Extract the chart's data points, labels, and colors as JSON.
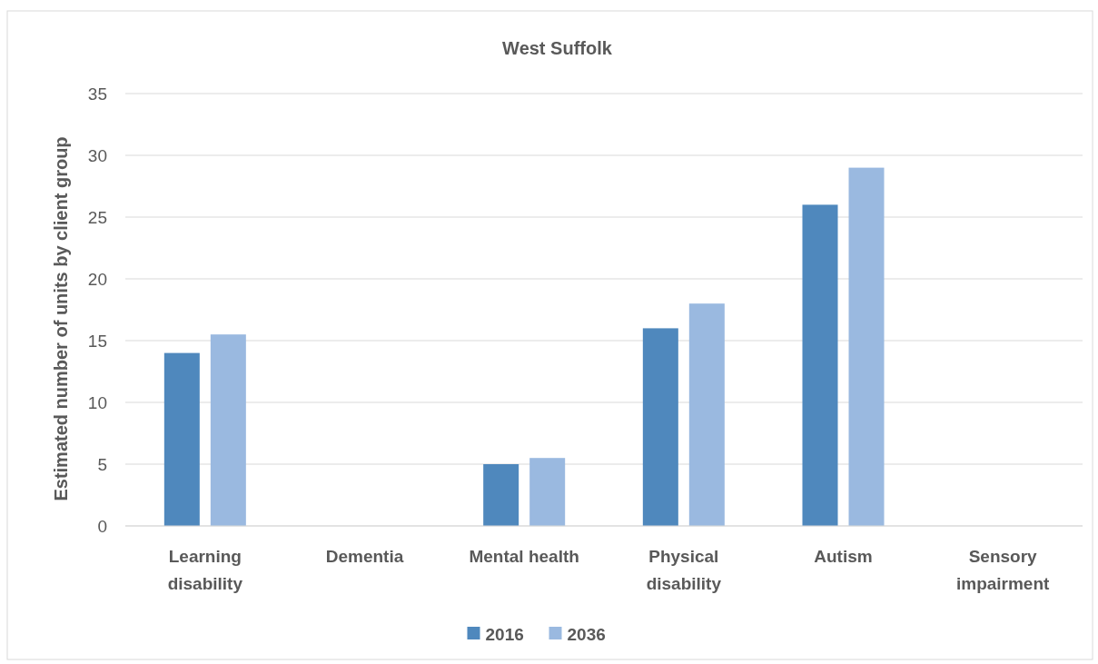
{
  "chart_data": {
    "type": "bar",
    "title": "West Suffolk",
    "ylabel": "Estimated number of units by client group",
    "categories": [
      "Learning disability",
      "Dementia",
      "Mental health",
      "Physical disability",
      "Autism",
      "Sensory impairment"
    ],
    "series": [
      {
        "name": "2016",
        "color": "#4f88bd",
        "values": [
          14,
          0,
          5,
          16,
          26,
          0
        ]
      },
      {
        "name": "2036",
        "color": "#9ab9e0",
        "values": [
          15.5,
          0,
          5.5,
          18,
          29,
          0
        ]
      }
    ],
    "ylim": [
      0,
      35
    ],
    "yticks": [
      0,
      5,
      10,
      15,
      20,
      25,
      30,
      35
    ],
    "grid": "y",
    "legend": "bottom"
  }
}
